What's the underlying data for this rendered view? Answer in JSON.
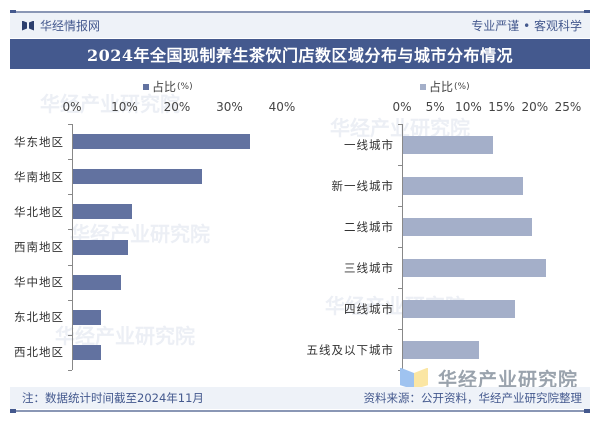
{
  "header": {
    "brand": "华经情报网",
    "slogan": "专业严谨 • 客观科学",
    "title": "2024年全国现制养生茶饮门店数区域分布与城市分布情况"
  },
  "footer": {
    "note": "注：数据统计时间截至2024年11月",
    "source": "资料来源：公开资料，华经产业研究院整理",
    "logo_text": "华经产业研究院"
  },
  "watermark": {
    "text": "华经产业研究院",
    "url": "www.huaon.com"
  },
  "colors": {
    "title_bg": "#44598e",
    "left_bar": "#6272a0",
    "right_bar": "#a4afc9",
    "band_bg": "#eef2f8"
  },
  "chart_data": [
    {
      "type": "bar",
      "orientation": "horizontal",
      "title": "区域分布",
      "legend": {
        "label": "占比",
        "unit": "(%)",
        "position": "top"
      },
      "categories": [
        "华东地区",
        "华南地区",
        "华北地区",
        "西南地区",
        "华中地区",
        "东北地区",
        "西北地区"
      ],
      "series": [
        {
          "name": "占比(%)",
          "values": [
            33.7,
            24.6,
            11.2,
            10.5,
            9.1,
            5.3,
            5.3
          ]
        }
      ],
      "xlim": [
        0,
        40
      ],
      "xticks": [
        "0%",
        "10%",
        "20%",
        "30%",
        "40%"
      ],
      "xaxis_position": "top",
      "grid": false
    },
    {
      "type": "bar",
      "orientation": "horizontal",
      "title": "城市分布",
      "legend": {
        "label": "占比",
        "unit": "(%)",
        "position": "top"
      },
      "categories": [
        "一线城市",
        "新一线城市",
        "二线城市",
        "三线城市",
        "四线城市",
        "五线及以下城市"
      ],
      "series": [
        {
          "name": "占比(%)",
          "values": [
            13.5,
            18.1,
            19.5,
            21.6,
            16.8,
            11.5
          ]
        }
      ],
      "xlim": [
        0,
        25
      ],
      "xticks": [
        "0%",
        "5%",
        "10%",
        "15%",
        "20%",
        "25%"
      ],
      "xaxis_position": "top",
      "grid": false
    }
  ]
}
